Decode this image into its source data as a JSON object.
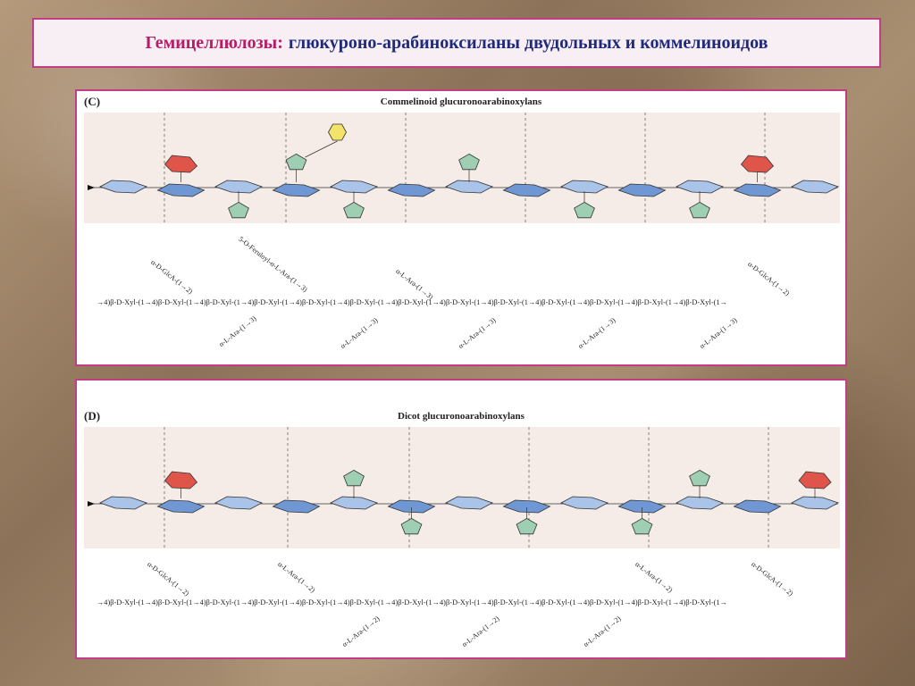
{
  "slide": {
    "title_prefix": "Гемицеллюлозы:",
    "title_rest": "глюкуроно-арабиноксиланы двудольных и коммелиноидов"
  },
  "panel_c": {
    "letter": "(C)",
    "title": "Commelinoid glucuronoarabinoxylans",
    "upper_labels": [
      "α-D-GlcA-(1→2)",
      "5-O-Feruloyl-α-L-Ara-(1→3)",
      "α-L-Ara-(1→3)",
      "α-D-GlcA-(1→2)"
    ],
    "chain": "→4)β-D-Xyl-(1→4)β-D-Xyl-(1→4)β-D-Xyl-(1→4)β-D-Xyl-(1→4)β-D-Xyl-(1→4)β-D-Xyl-(1→4)β-D-Xyl-(1→4)β-D-Xyl-(1→4)β-D-Xyl-(1→4)β-D-Xyl-(1→4)β-D-Xyl-(1→4)β-D-Xyl-(1→4)β-D-Xyl-(1→",
    "lower_labels": [
      "α-L-Ara-(1→3)",
      "α-L-Ara-(1→3)",
      "α-L-Ara-(1→3)",
      "α-L-Ara-(1→3)",
      "α-L-Ara-(1→3)"
    ]
  },
  "panel_d": {
    "letter": "(D)",
    "title": "Dicot glucuronoarabinoxylans",
    "upper_labels": [
      "α-D-GlcA-(1→2)",
      "α-L-Ara-(1→2)",
      "α-L-Ara-(1→2)",
      "α-D-GlcA-(1→2)"
    ],
    "chain": "→4)β-D-Xyl-(1→4)β-D-Xyl-(1→4)β-D-Xyl-(1→4)β-D-Xyl-(1→4)β-D-Xyl-(1→4)β-D-Xyl-(1→4)β-D-Xyl-(1→4)β-D-Xyl-(1→4)β-D-Xyl-(1→4)β-D-Xyl-(1→4)β-D-Xyl-(1→4)β-D-Xyl-(1→4)β-D-Xyl-(1→",
    "lower_labels": [
      "α-L-Ara-(1→2)",
      "α-L-Ara-(1→2)",
      "α-L-Ara-(1→2)"
    ]
  },
  "colors": {
    "xylose": "#a9c4e8",
    "xylose_dark": "#6f97d4",
    "arabinose": "#9fcfb3",
    "glucuronic_acid": "#e0554a",
    "ferulate": "#f3e36a",
    "title_accent": "#b81c66",
    "title_text": "#1f2a7a",
    "border": "#c23d86"
  }
}
